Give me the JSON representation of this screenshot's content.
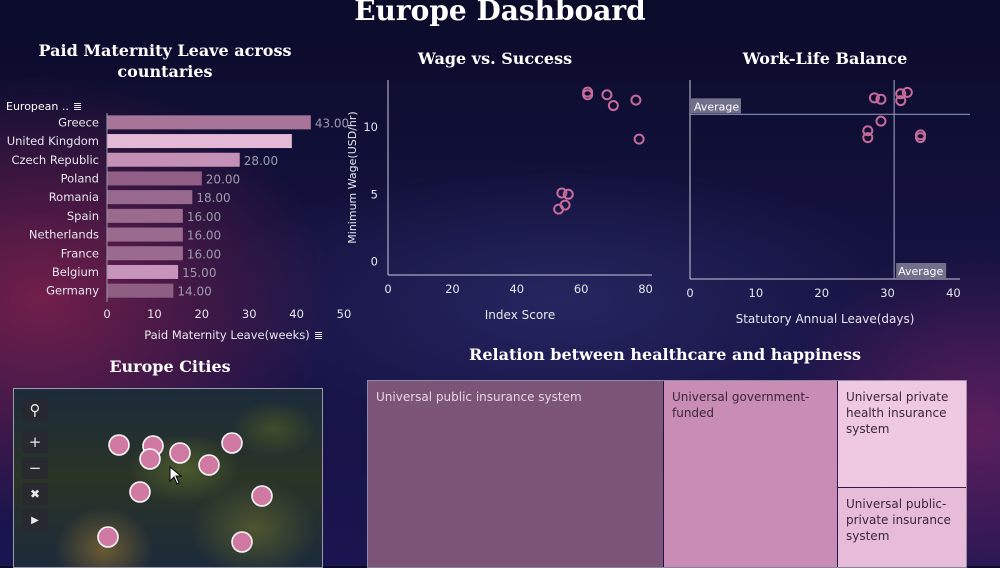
{
  "title": "Europe Dashboard",
  "sections": {
    "maternity_title": "Paid Maternity Leave across countaries",
    "wage_title": "Wage vs. Success",
    "balance_title": "Work-Life Balance",
    "cities_title": "Europe Cities",
    "health_title": "Relation between healthcare and happiness"
  },
  "chart_data": [
    {
      "type": "bar",
      "title": "Paid Maternity Leave across countaries",
      "header_label": "European ..",
      "categories": [
        "Greece",
        "United Kingdom",
        "Czech Republic",
        "Poland",
        "Romania",
        "Spain",
        "Netherlands",
        "France",
        "Belgium",
        "Germany"
      ],
      "values": [
        43,
        39,
        28,
        20,
        18,
        16,
        16,
        16,
        15,
        14
      ],
      "value_labels": [
        "43.00",
        "",
        "28.00",
        "20.00",
        "18.00",
        "16.00",
        "16.00",
        "16.00",
        "15.00",
        "14.00"
      ],
      "xlabel": "Paid Maternity Leave(weeks)",
      "xlim": [
        0,
        50
      ],
      "xticks": [
        "0",
        "10",
        "20",
        "30",
        "40",
        "50"
      ],
      "colors": [
        "#a77598",
        "#e3b9d6",
        "#c490b6",
        "#915f86",
        "#98698e",
        "#9a6a8f",
        "#9a6a8f",
        "#9a6a8f",
        "#c794bb",
        "#8f5f83"
      ]
    },
    {
      "type": "scatter",
      "title": "Wage vs. Success",
      "xlabel": "Index Score",
      "ylabel": "Minimum Wage(USD/hr)",
      "xlim": [
        0,
        82
      ],
      "ylim": [
        -1,
        13.5
      ],
      "xticks": [
        "0",
        "20",
        "40",
        "60",
        "80"
      ],
      "yticks": [
        "0",
        "5",
        "10"
      ],
      "points": [
        [
          62,
          12.6
        ],
        [
          62,
          12.4
        ],
        [
          68,
          12.4
        ],
        [
          70,
          11.6
        ],
        [
          77,
          12.0
        ],
        [
          78,
          9.1
        ],
        [
          54,
          5.1
        ],
        [
          56,
          5.0
        ],
        [
          55,
          4.2
        ],
        [
          53,
          3.9
        ]
      ],
      "marker_color": "#c66b9a"
    },
    {
      "type": "scatter",
      "title": "Work-Life Balance",
      "xlabel": "Statutory Annual Leave(days)",
      "xlim": [
        0,
        41
      ],
      "ylim": [
        -1,
        13.5
      ],
      "xticks": [
        "0",
        "10",
        "20",
        "30",
        "40"
      ],
      "reference_lines": {
        "x_label": "Average",
        "y_label": "Average",
        "x": 31,
        "y": 11
      },
      "points": [
        [
          28,
          12.2
        ],
        [
          29,
          12.1
        ],
        [
          32,
          12.5
        ],
        [
          33,
          12.6
        ],
        [
          32,
          12.0
        ],
        [
          29,
          10.5
        ],
        [
          27,
          9.8
        ],
        [
          27,
          9.3
        ],
        [
          35,
          9.5
        ],
        [
          35,
          9.3
        ]
      ],
      "marker_color": "#c66b9a"
    },
    {
      "type": "treemap",
      "title": "Relation between healthcare and happiness",
      "items": [
        {
          "label": "Universal public insurance system",
          "color": "#7b5477"
        },
        {
          "label": "Universal government-funded",
          "color": "#c98cb4"
        },
        {
          "label": "Universal private health insurance system",
          "color": "#efc9e2"
        },
        {
          "label": "Universal public-private insurance system",
          "color": "#e7bcd8"
        }
      ]
    }
  ],
  "map": {
    "tools": [
      "search-icon",
      "zoom-in-icon",
      "zoom-out-icon",
      "pin-icon",
      "play-icon"
    ],
    "marker_color": "#d07aa3"
  }
}
